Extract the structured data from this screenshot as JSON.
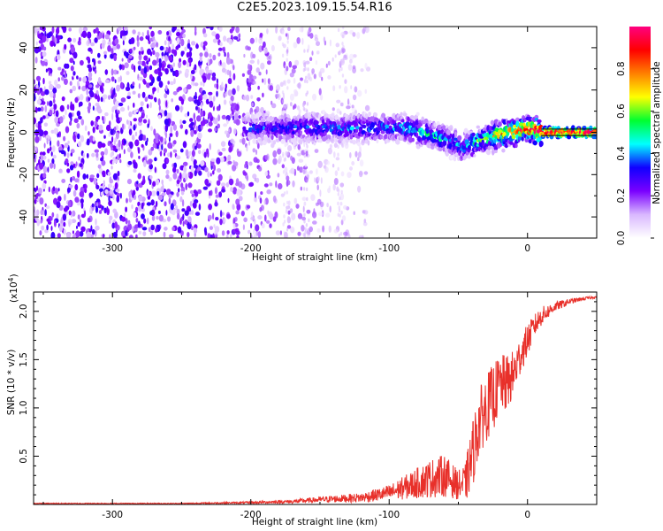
{
  "page": {
    "title": "C2E5.2023.109.15.54.R16"
  },
  "chart_data": [
    {
      "type": "heatmap",
      "xlabel": "Height of straight line (km)",
      "ylabel": "Frequency (Hz)",
      "xlim": [
        -357,
        50
      ],
      "ylim": [
        -50,
        50
      ],
      "xticks": [
        -300,
        -200,
        -100,
        0
      ],
      "yticks": [
        -40,
        -20,
        0,
        20,
        40
      ],
      "colorbar": {
        "label": "Normalized spectral amplitude",
        "range": [
          0,
          1
        ],
        "ticks": [
          0.0,
          0.2,
          0.4,
          0.6,
          0.8
        ],
        "colors": [
          "#ffffff",
          "#d9b8ff",
          "#7a00ff",
          "#1000ff",
          "#00ffff",
          "#00ff30",
          "#ffff00",
          "#ff8000",
          "#ff0000",
          "#ff0080"
        ]
      },
      "ridge": {
        "description": "Frequency centre of the narrow-band line (Hz) vs height (km)",
        "x": [
          -200,
          -180,
          -150,
          -120,
          -100,
          -90,
          -80,
          -70,
          -60,
          -50,
          -45,
          -40,
          -35,
          -30,
          -20,
          -10,
          0,
          10,
          20,
          30,
          50
        ],
        "y": [
          2,
          2,
          2,
          2,
          2,
          2,
          1,
          -1,
          -3,
          -6,
          -7,
          -5,
          -4,
          -3,
          -1,
          0,
          2,
          0,
          0,
          0,
          0
        ],
        "peak_amplitude": [
          0.35,
          0.35,
          0.4,
          0.4,
          0.4,
          0.45,
          0.45,
          0.5,
          0.45,
          0.4,
          0.45,
          0.5,
          0.55,
          0.6,
          0.75,
          0.85,
          0.95,
          1.0,
          1.0,
          1.0,
          1.0
        ]
      },
      "noise_region": {
        "x_from": -357,
        "x_to": -125,
        "amplitude": 0.15
      }
    },
    {
      "type": "line",
      "xlabel": "Height of straight line (km)",
      "ylabel": "SNR (10 * v/v)",
      "yscale_label": "(x10",
      "yscale_exp": "4",
      "xlim": [
        -357,
        50
      ],
      "ylim": [
        0,
        2.2
      ],
      "xticks": [
        -300,
        -200,
        -100,
        0
      ],
      "yticks": [
        0.5,
        1.0,
        1.5,
        2.0
      ],
      "series": [
        {
          "color": "#e8302a",
          "x": [
            -357,
            -300,
            -250,
            -200,
            -170,
            -150,
            -120,
            -100,
            -90,
            -80,
            -70,
            -60,
            -50,
            -45,
            -40,
            -35,
            -30,
            -25,
            -20,
            -15,
            -10,
            -5,
            0,
            5,
            10,
            15,
            20,
            30,
            40,
            50
          ],
          "y": [
            0.01,
            0.01,
            0.01,
            0.02,
            0.03,
            0.05,
            0.07,
            0.12,
            0.17,
            0.22,
            0.27,
            0.3,
            0.2,
            0.22,
            0.5,
            0.85,
            1.0,
            1.1,
            1.25,
            1.25,
            1.35,
            1.55,
            1.7,
            1.85,
            1.95,
            2.0,
            2.05,
            2.1,
            2.13,
            2.15
          ],
          "noise": [
            0.005,
            0.005,
            0.005,
            0.01,
            0.02,
            0.03,
            0.05,
            0.08,
            0.12,
            0.16,
            0.2,
            0.22,
            0.15,
            0.2,
            0.35,
            0.35,
            0.35,
            0.35,
            0.3,
            0.3,
            0.25,
            0.2,
            0.17,
            0.12,
            0.1,
            0.07,
            0.05,
            0.03,
            0.02,
            0.01
          ]
        }
      ]
    }
  ]
}
